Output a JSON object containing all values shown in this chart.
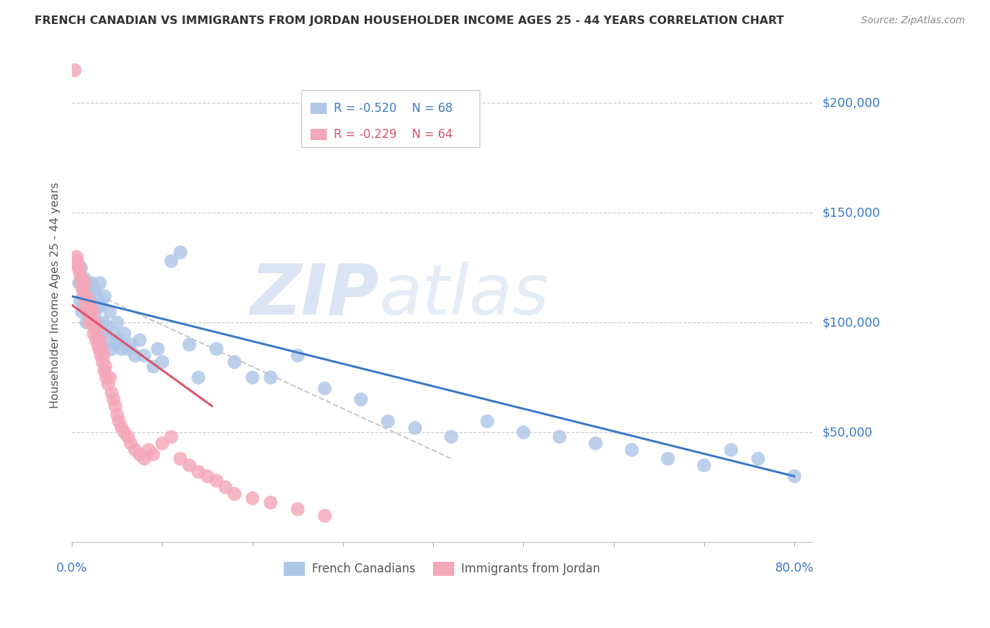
{
  "title": "FRENCH CANADIAN VS IMMIGRANTS FROM JORDAN HOUSEHOLDER INCOME AGES 25 - 44 YEARS CORRELATION CHART",
  "source": "Source: ZipAtlas.com",
  "ylabel": "Householder Income Ages 25 - 44 years",
  "watermark_zip": "ZIP",
  "watermark_atlas": "atlas",
  "legend_blue_R": "R = -0.520",
  "legend_blue_N": "N = 68",
  "legend_pink_R": "R = -0.229",
  "legend_pink_N": "N = 64",
  "legend_label_blue": "French Canadians",
  "legend_label_pink": "Immigrants from Jordan",
  "blue_color": "#aec6e8",
  "pink_color": "#f4a7b9",
  "blue_line_color": "#3a78c9",
  "pink_line_color": "#d9536a",
  "dashed_line_color": "#c8c8c8",
  "title_color": "#333333",
  "source_color": "#888888",
  "axis_label_color": "#555555",
  "ytick_color": "#3a78c9",
  "xtick_color": "#3a78c9",
  "blue_scatter_x": [
    0.008,
    0.009,
    0.01,
    0.011,
    0.012,
    0.013,
    0.014,
    0.015,
    0.016,
    0.017,
    0.018,
    0.019,
    0.02,
    0.021,
    0.022,
    0.024,
    0.025,
    0.026,
    0.027,
    0.028,
    0.03,
    0.031,
    0.032,
    0.033,
    0.035,
    0.036,
    0.038,
    0.04,
    0.042,
    0.044,
    0.046,
    0.048,
    0.05,
    0.052,
    0.055,
    0.058,
    0.062,
    0.065,
    0.07,
    0.075,
    0.08,
    0.09,
    0.095,
    0.1,
    0.11,
    0.12,
    0.13,
    0.14,
    0.16,
    0.18,
    0.2,
    0.22,
    0.25,
    0.28,
    0.32,
    0.35,
    0.38,
    0.42,
    0.46,
    0.5,
    0.54,
    0.58,
    0.62,
    0.66,
    0.7,
    0.73,
    0.76,
    0.8
  ],
  "blue_scatter_y": [
    118000,
    110000,
    125000,
    105000,
    115000,
    108000,
    120000,
    112000,
    100000,
    118000,
    108000,
    115000,
    105000,
    112000,
    118000,
    108000,
    115000,
    105000,
    112000,
    100000,
    108000,
    118000,
    95000,
    108000,
    100000,
    112000,
    98000,
    92000,
    105000,
    88000,
    95000,
    90000,
    100000,
    92000,
    88000,
    95000,
    88000,
    90000,
    85000,
    92000,
    85000,
    80000,
    88000,
    82000,
    128000,
    132000,
    90000,
    75000,
    88000,
    82000,
    75000,
    75000,
    85000,
    70000,
    65000,
    55000,
    52000,
    48000,
    55000,
    50000,
    48000,
    45000,
    42000,
    38000,
    35000,
    42000,
    38000,
    30000
  ],
  "pink_scatter_x": [
    0.003,
    0.005,
    0.006,
    0.007,
    0.008,
    0.009,
    0.01,
    0.011,
    0.012,
    0.013,
    0.014,
    0.015,
    0.016,
    0.017,
    0.018,
    0.019,
    0.02,
    0.021,
    0.022,
    0.023,
    0.024,
    0.025,
    0.026,
    0.027,
    0.028,
    0.029,
    0.03,
    0.031,
    0.032,
    0.033,
    0.034,
    0.035,
    0.036,
    0.037,
    0.038,
    0.04,
    0.042,
    0.044,
    0.046,
    0.048,
    0.05,
    0.052,
    0.055,
    0.058,
    0.062,
    0.065,
    0.07,
    0.075,
    0.08,
    0.085,
    0.09,
    0.1,
    0.11,
    0.12,
    0.13,
    0.14,
    0.15,
    0.16,
    0.17,
    0.18,
    0.2,
    0.22,
    0.25,
    0.28
  ],
  "pink_scatter_y": [
    215000,
    130000,
    128000,
    125000,
    125000,
    122000,
    118000,
    120000,
    115000,
    112000,
    118000,
    108000,
    112000,
    105000,
    110000,
    100000,
    108000,
    105000,
    100000,
    105000,
    95000,
    100000,
    98000,
    92000,
    95000,
    90000,
    88000,
    92000,
    85000,
    88000,
    82000,
    85000,
    78000,
    80000,
    75000,
    72000,
    75000,
    68000,
    65000,
    62000,
    58000,
    55000,
    52000,
    50000,
    48000,
    45000,
    42000,
    40000,
    38000,
    42000,
    40000,
    45000,
    48000,
    38000,
    35000,
    32000,
    30000,
    28000,
    25000,
    22000,
    20000,
    18000,
    15000,
    12000
  ],
  "blue_trendline_x": [
    0.0,
    0.8
  ],
  "blue_trendline_y": [
    112000,
    30000
  ],
  "pink_trendline_x": [
    0.0,
    0.155
  ],
  "pink_trendline_y": [
    108000,
    62000
  ],
  "dashed_trendline_x": [
    0.0,
    0.42
  ],
  "dashed_trendline_y": [
    118000,
    38000
  ],
  "xlim": [
    0.0,
    0.82
  ],
  "ylim": [
    0,
    225000
  ],
  "figsize": [
    14.06,
    8.92
  ],
  "dpi": 100,
  "yticks": [
    0,
    50000,
    100000,
    150000,
    200000
  ],
  "ytick_labels": [
    "",
    "$50,000",
    "$100,000",
    "$150,000",
    "$200,000"
  ]
}
